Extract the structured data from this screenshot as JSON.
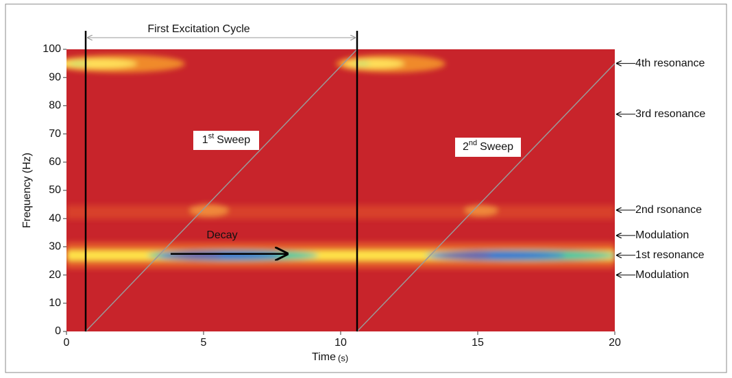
{
  "chart_data": {
    "type": "spectrogram",
    "title": "First Excitation Cycle",
    "xlabel": "Time",
    "xlabel_unit": "(s)",
    "ylabel": "Frequency (Hz)",
    "xlim": [
      0,
      20
    ],
    "ylim": [
      0,
      100
    ],
    "xticks": [
      0,
      5,
      10,
      15,
      20
    ],
    "yticks": [
      0,
      10,
      20,
      30,
      40,
      50,
      60,
      70,
      80,
      90,
      100
    ],
    "cycle_markers": [
      0.7,
      10.6
    ],
    "sweeps": [
      {
        "label": [
          "1",
          "st",
          "Sweep"
        ],
        "x": [
          0.7,
          10.6
        ],
        "y": [
          0,
          100
        ]
      },
      {
        "label": [
          "2",
          "nd",
          "Sweep"
        ],
        "x": [
          10.6,
          20
        ],
        "y": [
          0,
          95
        ]
      }
    ],
    "decay": {
      "label": "Decay",
      "x": [
        3.8,
        8.1
      ],
      "y": 27.5
    },
    "annotations": [
      {
        "label": "4th resonance",
        "y": 95
      },
      {
        "label": "3rd resonance",
        "y": 77
      },
      {
        "label": "2nd rsonance",
        "y": 43
      },
      {
        "label": "Modulation",
        "y": 34
      },
      {
        "label": "1st resonance",
        "y": 27
      },
      {
        "label": "Modulation",
        "y": 20
      }
    ]
  }
}
